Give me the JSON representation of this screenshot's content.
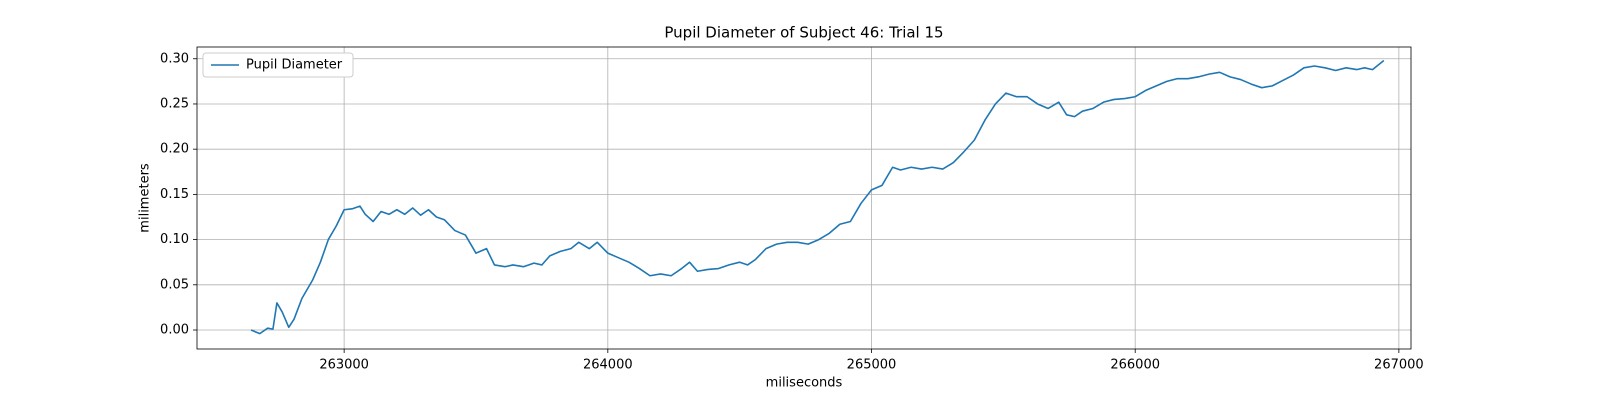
{
  "chart_data": {
    "type": "line",
    "title": "Pupil Diameter of Subject 46: Trial 15",
    "xlabel": "miliseconds",
    "ylabel": "milimeters",
    "x": [
      262647,
      262680,
      262710,
      262730,
      262745,
      262765,
      262790,
      262810,
      262840,
      262880,
      262910,
      262940,
      262970,
      263000,
      263030,
      263060,
      263080,
      263110,
      263140,
      263170,
      263200,
      263230,
      263260,
      263290,
      263320,
      263350,
      263380,
      263420,
      263460,
      263500,
      263540,
      263570,
      263610,
      263640,
      263680,
      263720,
      263750,
      263780,
      263820,
      263860,
      263890,
      263930,
      263960,
      264000,
      264040,
      264080,
      264120,
      264160,
      264200,
      264240,
      264280,
      264310,
      264340,
      264380,
      264420,
      264460,
      264500,
      264530,
      264560,
      264600,
      264640,
      264680,
      264720,
      264760,
      264800,
      264840,
      264880,
      264920,
      264960,
      265000,
      265040,
      265080,
      265110,
      265150,
      265190,
      265230,
      265270,
      265310,
      265350,
      265390,
      265430,
      265470,
      265510,
      265550,
      265590,
      265630,
      265670,
      265710,
      265740,
      265770,
      265800,
      265840,
      265880,
      265920,
      265960,
      266000,
      266040,
      266080,
      266120,
      266160,
      266200,
      266240,
      266280,
      266320,
      266360,
      266400,
      266440,
      266480,
      266520,
      266560,
      266600,
      266640,
      266680,
      266720,
      266760,
      266800,
      266840,
      266870,
      266900,
      266943
    ],
    "series": [
      {
        "name": "Pupil Diameter",
        "color": "#1f77b4",
        "values": [
          0,
          -0.004,
          0.002,
          0.001,
          0.03,
          0.02,
          0.003,
          0.012,
          0.035,
          0.055,
          0.075,
          0.1,
          0.115,
          0.133,
          0.134,
          0.137,
          0.128,
          0.12,
          0.131,
          0.128,
          0.133,
          0.128,
          0.135,
          0.127,
          0.133,
          0.125,
          0.122,
          0.11,
          0.105,
          0.085,
          0.09,
          0.072,
          0.07,
          0.072,
          0.07,
          0.074,
          0.072,
          0.082,
          0.087,
          0.09,
          0.097,
          0.09,
          0.097,
          0.085,
          0.08,
          0.075,
          0.068,
          0.06,
          0.062,
          0.06,
          0.068,
          0.075,
          0.065,
          0.067,
          0.068,
          0.072,
          0.075,
          0.072,
          0.078,
          0.09,
          0.095,
          0.097,
          0.097,
          0.095,
          0.1,
          0.107,
          0.117,
          0.12,
          0.14,
          0.155,
          0.16,
          0.18,
          0.177,
          0.18,
          0.178,
          0.18,
          0.178,
          0.185,
          0.197,
          0.21,
          0.232,
          0.25,
          0.262,
          0.258,
          0.258,
          0.25,
          0.245,
          0.252,
          0.238,
          0.236,
          0.242,
          0.245,
          0.252,
          0.255,
          0.256,
          0.258,
          0.265,
          0.27,
          0.275,
          0.278,
          0.278,
          0.28,
          0.283,
          0.285,
          0.28,
          0.277,
          0.272,
          0.268,
          0.27,
          0.276,
          0.282,
          0.29,
          0.292,
          0.29,
          0.287,
          0.29,
          0.288,
          0.29,
          0.288,
          0.298
        ]
      }
    ],
    "xlim": [
      262442,
      267046
    ],
    "ylim": [
      -0.021,
      0.313
    ],
    "xticks": [
      263000,
      264000,
      265000,
      266000,
      267000
    ],
    "yticks": [
      {
        "value": 0,
        "label": "0.00"
      },
      {
        "value": 0.05,
        "label": "0.05"
      },
      {
        "value": 0.1,
        "label": "0.10"
      },
      {
        "value": 0.15,
        "label": "0.15"
      },
      {
        "value": 0.2,
        "label": "0.20"
      },
      {
        "value": 0.25,
        "label": "0.25"
      },
      {
        "value": 0.3,
        "label": "0.30"
      }
    ],
    "grid": true,
    "legend": "upper-left"
  }
}
